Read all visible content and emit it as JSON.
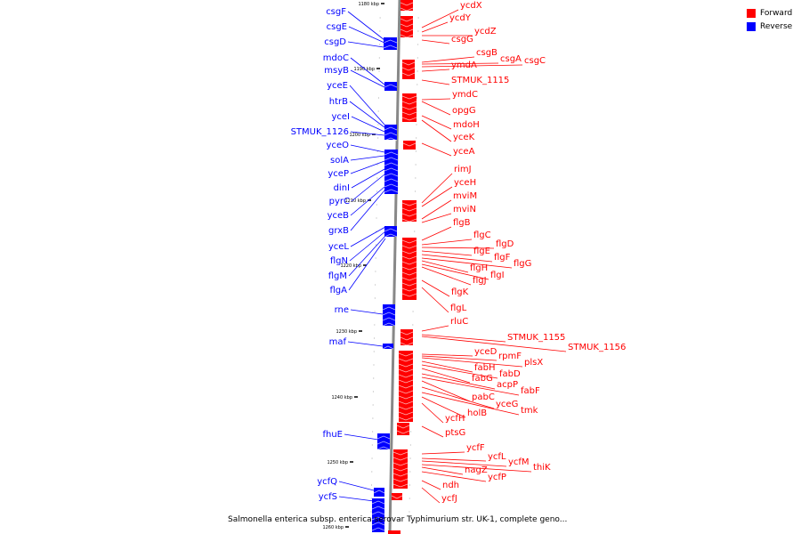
{
  "colors": {
    "forward": "#ff0000",
    "reverse": "#0000ff",
    "backbone": "#888888"
  },
  "legend": [
    {
      "label": "Forward",
      "color": "#ff0000"
    },
    {
      "label": "Reverse",
      "color": "#0000ff"
    }
  ],
  "caption": "Salmonella enterica subsp. enterica serovar Typhimurium str. UK-1, complete geno...",
  "ticks": [
    "1180 kbp",
    "1190 kbp",
    "1200 kbp",
    "1210 kbp",
    "1220 kbp",
    "1230 kbp",
    "1240 kbp",
    "1250 kbp",
    "1260 kbp"
  ],
  "reverse_genes": [
    "csgF",
    "csgE",
    "csgD",
    "mdoC",
    "msyB",
    "yceE",
    "htrB",
    "yceI",
    "STMUK_1126",
    "yceO",
    "solA",
    "yceP",
    "dinI",
    "pyrC",
    "yceB",
    "grxB",
    "yceL",
    "flgN",
    "flgM",
    "flgA",
    "rne",
    "maf",
    "fhuE",
    "ycfQ",
    "ycfS"
  ],
  "forward_genes": [
    "ycdX",
    "ycdY",
    "ycdZ",
    "csgG",
    "csgB",
    "csgA",
    "csgC",
    "ymdA",
    "STMUK_1115",
    "ymdC",
    "opgG",
    "mdoH",
    "yceK",
    "yceA",
    "rimJ",
    "yceH",
    "mviM",
    "mviN",
    "flgB",
    "flgC",
    "flgD",
    "flgE",
    "flgF",
    "flgG",
    "flgH",
    "flgI",
    "flgJ",
    "flgK",
    "flgL",
    "rluC",
    "STMUK_1155",
    "STMUK_1156",
    "yceD",
    "rpmF",
    "plsX",
    "fabH",
    "fabD",
    "fabG",
    "acpP",
    "fabF",
    "pabC",
    "yceG",
    "tmk",
    "holB",
    "ycfH",
    "ptsG",
    "ycfF",
    "ycfL",
    "ycfM",
    "thiK",
    "nagZ",
    "ycfP",
    "ndh",
    "ycfJ"
  ]
}
